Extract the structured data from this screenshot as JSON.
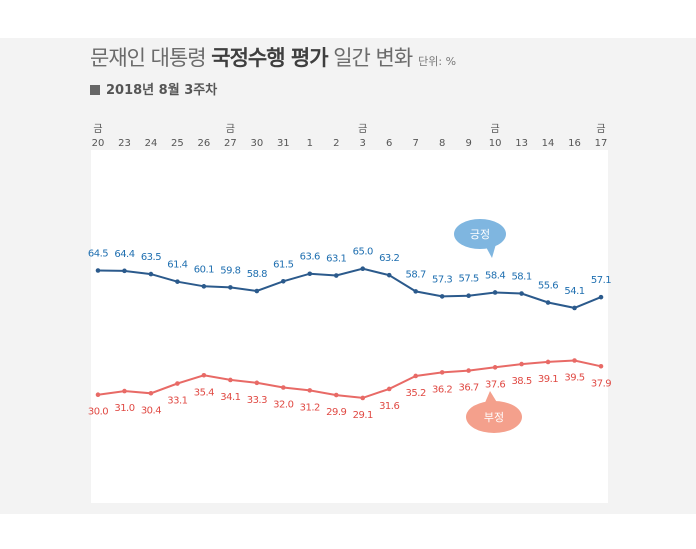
{
  "header": {
    "title_normal": "문재인 대통령 ",
    "title_bold": "국정수행 평가",
    "title_suffix": " 일간 변화",
    "unit": "단위: %",
    "subtitle": "2018년 8월 3주차"
  },
  "chart_data": {
    "type": "line",
    "title": "문재인 대통령 국정수행 평가 일간 변화",
    "subtitle": "2018년 8월 3주차",
    "unit": "단위: %",
    "categories": [
      "20",
      "23",
      "24",
      "25",
      "26",
      "27",
      "30",
      "31",
      "1",
      "2",
      "3",
      "6",
      "7",
      "8",
      "9",
      "10",
      "13",
      "14",
      "16",
      "17"
    ],
    "day_marks": [
      "금",
      "",
      "",
      "",
      "",
      "금",
      "",
      "",
      "",
      "",
      "금",
      "",
      "",
      "",
      "",
      "금",
      "",
      "",
      "",
      "금"
    ],
    "series": [
      {
        "name": "긍정",
        "color": "#2b5a8c",
        "label_color": "#1f6fb0",
        "values": [
          64.5,
          64.4,
          63.5,
          61.4,
          60.1,
          59.8,
          58.8,
          61.5,
          63.6,
          63.1,
          65.0,
          63.2,
          58.7,
          57.3,
          57.5,
          58.4,
          58.1,
          55.6,
          54.1,
          57.1
        ]
      },
      {
        "name": "부정",
        "color": "#e86a66",
        "label_color": "#e04a44",
        "values": [
          30.0,
          31.0,
          30.4,
          33.1,
          35.4,
          34.1,
          33.3,
          32.0,
          31.2,
          29.9,
          29.1,
          31.6,
          35.2,
          36.2,
          36.7,
          37.6,
          38.5,
          39.1,
          39.5,
          37.9
        ]
      }
    ],
    "bubble_colors": {
      "positive": "#7fb6e0",
      "negative": "#f4a08c"
    },
    "grid": false
  }
}
